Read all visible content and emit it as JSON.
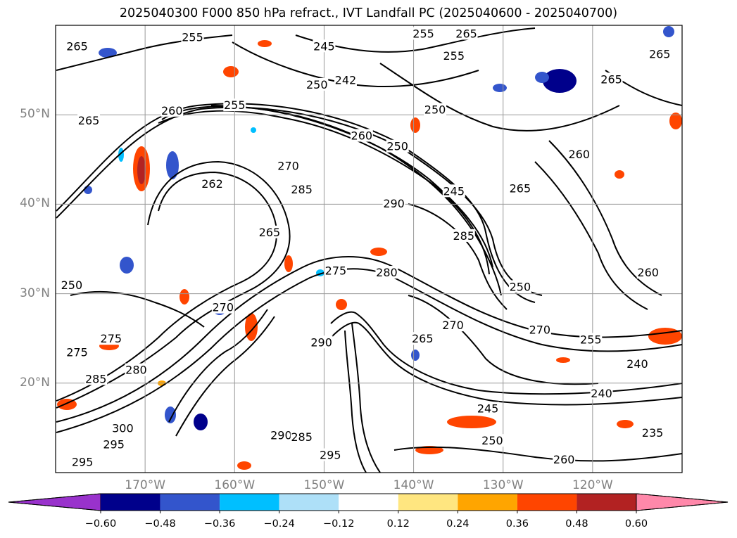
{
  "title": "2025040300 F000 850 hPa refract., IVT Landfall PC (2025040600 - 2025040700)",
  "map": {
    "extent": {
      "lon_min": -180,
      "lon_max": -110,
      "lat_min": 10,
      "lat_max": 60
    },
    "lat_ticks": [
      {
        "lat": 50,
        "label": "50°N"
      },
      {
        "lat": 40,
        "label": "40°N"
      },
      {
        "lat": 30,
        "label": "30°N"
      },
      {
        "lat": 20,
        "label": "20°N"
      }
    ],
    "lon_ticks": [
      {
        "lon": -170,
        "label": "170°W"
      },
      {
        "lon": -160,
        "label": "160°W"
      },
      {
        "lon": -150,
        "label": "150°W"
      },
      {
        "lon": -140,
        "label": "140°W"
      },
      {
        "lon": -130,
        "label": "130°W"
      },
      {
        "lon": -120,
        "label": "120°W"
      }
    ],
    "grid_lines": true,
    "gridline_color": "#999999",
    "contour_color": "#000000",
    "contour_labels": [
      {
        "text": "265",
        "lon": -177.6,
        "lat": 57.7
      },
      {
        "text": "255",
        "lon": -164.7,
        "lat": 58.7
      },
      {
        "text": "245",
        "lon": -150.0,
        "lat": 57.7
      },
      {
        "text": "255",
        "lon": -138.9,
        "lat": 59.1
      },
      {
        "text": "265",
        "lon": -134.1,
        "lat": 59.1
      },
      {
        "text": "250",
        "lon": -150.8,
        "lat": 53.4
      },
      {
        "text": "242",
        "lon": -147.6,
        "lat": 53.9
      },
      {
        "text": "255",
        "lon": -135.5,
        "lat": 56.6
      },
      {
        "text": "250",
        "lon": -137.6,
        "lat": 50.6
      },
      {
        "text": "260",
        "lon": -167.0,
        "lat": 50.5
      },
      {
        "text": "255",
        "lon": -160.0,
        "lat": 51.1
      },
      {
        "text": "265",
        "lon": -176.3,
        "lat": 49.4
      },
      {
        "text": "265",
        "lon": -112.5,
        "lat": 56.8
      },
      {
        "text": "265",
        "lon": -117.9,
        "lat": 54.0
      },
      {
        "text": "260",
        "lon": -145.8,
        "lat": 47.7
      },
      {
        "text": "250",
        "lon": -141.8,
        "lat": 46.5
      },
      {
        "text": "265",
        "lon": -128.1,
        "lat": 41.8
      },
      {
        "text": "245",
        "lon": -135.5,
        "lat": 41.5
      },
      {
        "text": "260",
        "lon": -121.5,
        "lat": 45.6
      },
      {
        "text": "262",
        "lon": -162.5,
        "lat": 42.3
      },
      {
        "text": "270",
        "lon": -154.0,
        "lat": 44.3
      },
      {
        "text": "285",
        "lon": -152.5,
        "lat": 41.7
      },
      {
        "text": "290",
        "lon": -142.2,
        "lat": 40.1
      },
      {
        "text": "265",
        "lon": -156.1,
        "lat": 36.9
      },
      {
        "text": "285",
        "lon": -134.4,
        "lat": 36.5
      },
      {
        "text": "275",
        "lon": -148.7,
        "lat": 32.6
      },
      {
        "text": "280",
        "lon": -143.0,
        "lat": 32.4
      },
      {
        "text": "250",
        "lon": -128.1,
        "lat": 30.8
      },
      {
        "text": "260",
        "lon": -113.8,
        "lat": 32.4
      },
      {
        "text": "270",
        "lon": -161.3,
        "lat": 28.5
      },
      {
        "text": "250",
        "lon": -178.2,
        "lat": 31.0
      },
      {
        "text": "270",
        "lon": -135.6,
        "lat": 26.5
      },
      {
        "text": "265",
        "lon": -139.0,
        "lat": 25.0
      },
      {
        "text": "270",
        "lon": -125.9,
        "lat": 26.0
      },
      {
        "text": "255",
        "lon": -120.2,
        "lat": 24.9
      },
      {
        "text": "290",
        "lon": -150.3,
        "lat": 24.6
      },
      {
        "text": "275",
        "lon": -173.8,
        "lat": 25.0
      },
      {
        "text": "275",
        "lon": -177.6,
        "lat": 23.5
      },
      {
        "text": "280",
        "lon": -171.0,
        "lat": 21.5
      },
      {
        "text": "285",
        "lon": -175.5,
        "lat": 20.5
      },
      {
        "text": "240",
        "lon": -115.0,
        "lat": 22.2
      },
      {
        "text": "240",
        "lon": -119.0,
        "lat": 18.9
      },
      {
        "text": "245",
        "lon": -131.7,
        "lat": 17.2
      },
      {
        "text": "235",
        "lon": -113.3,
        "lat": 14.5
      },
      {
        "text": "300",
        "lon": -172.5,
        "lat": 15.0
      },
      {
        "text": "295",
        "lon": -173.5,
        "lat": 13.2
      },
      {
        "text": "290",
        "lon": -154.8,
        "lat": 14.2
      },
      {
        "text": "285",
        "lon": -152.5,
        "lat": 14.0
      },
      {
        "text": "295",
        "lon": -149.3,
        "lat": 12.0
      },
      {
        "text": "295",
        "lon": -177.0,
        "lat": 11.2
      },
      {
        "text": "250",
        "lon": -131.2,
        "lat": 13.6
      },
      {
        "text": "260",
        "lon": -123.2,
        "lat": 11.5
      }
    ]
  },
  "colorbar": {
    "tick_labels": [
      "−0.60",
      "−0.48",
      "−0.36",
      "−0.24",
      "−0.12",
      "0.12",
      "0.24",
      "0.36",
      "0.48",
      "0.60"
    ],
    "levels": [
      -0.6,
      -0.48,
      -0.36,
      -0.24,
      -0.12,
      0.12,
      0.24,
      0.36,
      0.48,
      0.6
    ],
    "colors": [
      "#9932cc",
      "#00008b",
      "#3355cc",
      "#00bfff",
      "#aee0f8",
      "#ffffff",
      "#ffe680",
      "#ffa500",
      "#ff4500",
      "#b22222",
      "#ff88aa"
    ]
  }
}
